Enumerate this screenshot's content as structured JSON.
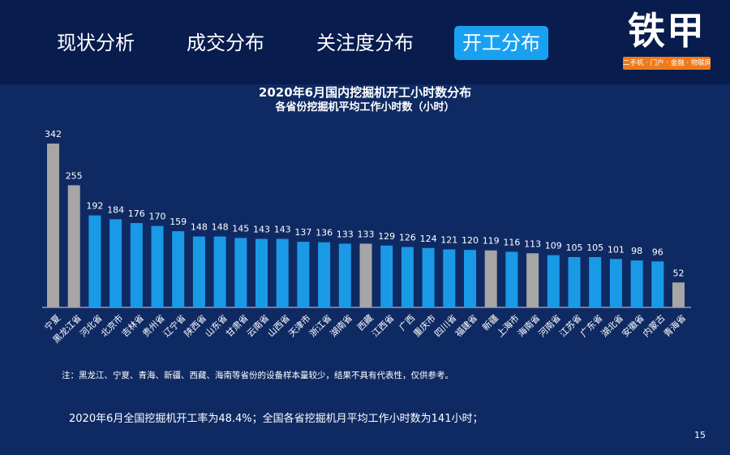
{
  "tabs": [
    {
      "label": "现状分析",
      "active": false
    },
    {
      "label": "成交分布",
      "active": false
    },
    {
      "label": "关注度分布",
      "active": false
    },
    {
      "label": "开工分布",
      "active": true
    }
  ],
  "logo": {
    "text": "铁甲",
    "subtitle": "二手机 · 门户 · 金融 · 物联网"
  },
  "colors": {
    "bar_normal": "#1a9ae6",
    "bar_low_sample": "#a6a6a6"
  },
  "chart_data": {
    "type": "bar",
    "title": "2020年6月国内挖掘机开工小时数分布",
    "subtitle": "各省份挖掘机平均工作小时数（小时）",
    "categories": [
      "宁夏",
      "黑龙江省",
      "河北省",
      "北京市",
      "吉林省",
      "贵州省",
      "辽宁省",
      "陕西省",
      "山东省",
      "甘肃省",
      "云南省",
      "山西省",
      "天津市",
      "浙江省",
      "湖南省",
      "西藏",
      "江西省",
      "广西",
      "重庆市",
      "四川省",
      "福建省",
      "新疆",
      "上海市",
      "海南省",
      "河南省",
      "江苏省",
      "广东省",
      "湖北省",
      "安徽省",
      "内蒙古",
      "青海省"
    ],
    "values": [
      342,
      255,
      192,
      184,
      176,
      170,
      159,
      148,
      148,
      145,
      143,
      143,
      137,
      136,
      133,
      133,
      129,
      126,
      124,
      121,
      120,
      119,
      116,
      113,
      109,
      105,
      105,
      101,
      98,
      96,
      52
    ],
    "low_sample": [
      true,
      true,
      false,
      false,
      false,
      false,
      false,
      false,
      false,
      false,
      false,
      false,
      false,
      false,
      false,
      true,
      false,
      false,
      false,
      false,
      false,
      true,
      false,
      true,
      false,
      false,
      false,
      false,
      false,
      false,
      true
    ],
    "ylim": [
      0,
      342
    ],
    "grid": false,
    "legend": "none"
  },
  "note": "注：黑龙江、宁夏、青海、新疆、西藏、海南等省份的设备样本量较少，结果不具有代表性，仅供参考。",
  "summary": "2020年6月全国挖掘机开工率为48.4%；全国各省挖掘机月平均工作小时数为141小时；",
  "page_number": "15"
}
